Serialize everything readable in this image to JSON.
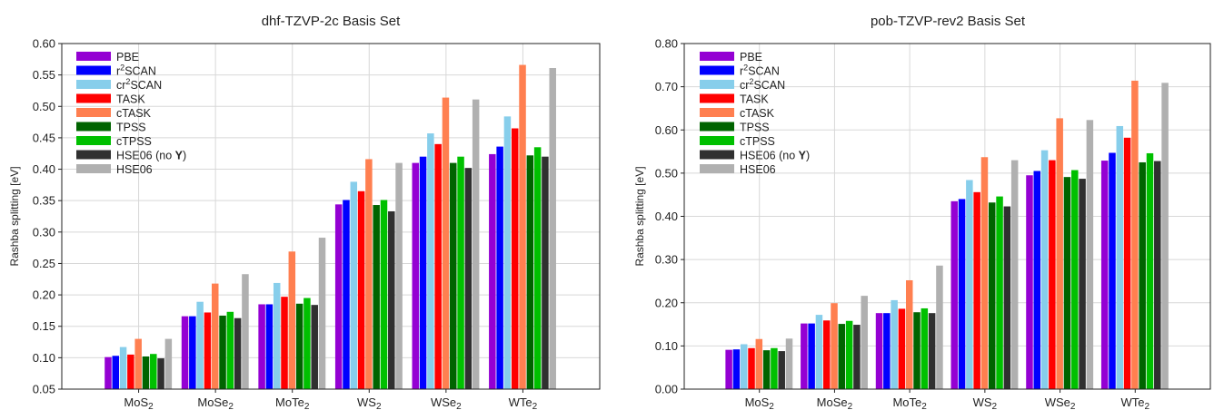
{
  "chart_data": [
    {
      "type": "bar",
      "title": "dhf-TZVP-2c Basis Set",
      "xlabel": "",
      "ylabel": "Rashba splitting [eV]",
      "ylim": [
        0.05,
        0.6
      ],
      "yticks": [
        "0.05",
        "0.10",
        "0.15",
        "0.20",
        "0.25",
        "0.30",
        "0.35",
        "0.40",
        "0.45",
        "0.50",
        "0.55",
        "0.60"
      ],
      "grid": true,
      "legend_position": "top-left",
      "categories": [
        {
          "base": "MoS",
          "sub": "2"
        },
        {
          "base": "MoSe",
          "sub": "2"
        },
        {
          "base": "MoTe",
          "sub": "2"
        },
        {
          "base": "WS",
          "sub": "2"
        },
        {
          "base": "WSe",
          "sub": "2"
        },
        {
          "base": "WTe",
          "sub": "2"
        }
      ],
      "series": [
        {
          "name": "PBE",
          "color": "#9400d3",
          "values": [
            0.101,
            0.166,
            0.185,
            0.344,
            0.41,
            0.424
          ]
        },
        {
          "name": "r²SCAN",
          "color": "#0000ff",
          "values": [
            0.103,
            0.166,
            0.185,
            0.351,
            0.42,
            0.436
          ]
        },
        {
          "name": "cr²SCAN",
          "color": "#87ceeb",
          "values": [
            0.117,
            0.189,
            0.219,
            0.38,
            0.457,
            0.484
          ]
        },
        {
          "name": "TASK",
          "color": "#ff0000",
          "values": [
            0.105,
            0.172,
            0.197,
            0.365,
            0.44,
            0.465
          ]
        },
        {
          "name": "cTASK",
          "color": "#ff7f50",
          "values": [
            0.13,
            0.218,
            0.269,
            0.416,
            0.514,
            0.566
          ]
        },
        {
          "name": "TPSS",
          "color": "#006400",
          "values": [
            0.102,
            0.167,
            0.186,
            0.343,
            0.41,
            0.422
          ]
        },
        {
          "name": "cTPSS",
          "color": "#00c000",
          "values": [
            0.106,
            0.173,
            0.195,
            0.351,
            0.42,
            0.435
          ]
        },
        {
          "name": "HSE06 (no Y)",
          "color": "#303030",
          "values": [
            0.099,
            0.163,
            0.184,
            0.333,
            0.402,
            0.42
          ]
        },
        {
          "name": "HSE06",
          "color": "#b0b0b0",
          "values": [
            0.13,
            0.233,
            0.291,
            0.41,
            0.511,
            0.561
          ]
        }
      ]
    },
    {
      "type": "bar",
      "title": "pob-TZVP-rev2 Basis Set",
      "xlabel": "",
      "ylabel": "Rashba splitting [eV]",
      "ylim": [
        0.0,
        0.8
      ],
      "yticks": [
        "0.00",
        "0.10",
        "0.20",
        "0.30",
        "0.40",
        "0.50",
        "0.60",
        "0.70",
        "0.80"
      ],
      "grid": true,
      "legend_position": "top-left",
      "categories": [
        {
          "base": "MoS",
          "sub": "2"
        },
        {
          "base": "MoSe",
          "sub": "2"
        },
        {
          "base": "MoTe",
          "sub": "2"
        },
        {
          "base": "WS",
          "sub": "2"
        },
        {
          "base": "WSe",
          "sub": "2"
        },
        {
          "base": "WTe",
          "sub": "2"
        }
      ],
      "series": [
        {
          "name": "PBE",
          "color": "#9400d3",
          "values": [
            0.091,
            0.152,
            0.176,
            0.435,
            0.495,
            0.529
          ]
        },
        {
          "name": "r²SCAN",
          "color": "#0000ff",
          "values": [
            0.092,
            0.152,
            0.176,
            0.44,
            0.505,
            0.547
          ]
        },
        {
          "name": "cr²SCAN",
          "color": "#87ceeb",
          "values": [
            0.104,
            0.172,
            0.206,
            0.484,
            0.553,
            0.609
          ]
        },
        {
          "name": "TASK",
          "color": "#ff0000",
          "values": [
            0.095,
            0.159,
            0.186,
            0.456,
            0.53,
            0.582
          ]
        },
        {
          "name": "cTASK",
          "color": "#ff7f50",
          "values": [
            0.116,
            0.199,
            0.252,
            0.537,
            0.627,
            0.714
          ]
        },
        {
          "name": "TPSS",
          "color": "#006400",
          "values": [
            0.09,
            0.151,
            0.178,
            0.432,
            0.491,
            0.525
          ]
        },
        {
          "name": "cTPSS",
          "color": "#00c000",
          "values": [
            0.095,
            0.158,
            0.187,
            0.446,
            0.507,
            0.546
          ]
        },
        {
          "name": "HSE06 (no Y)",
          "color": "#303030",
          "values": [
            0.088,
            0.149,
            0.176,
            0.423,
            0.487,
            0.528
          ]
        },
        {
          "name": "HSE06",
          "color": "#b0b0b0",
          "values": [
            0.117,
            0.216,
            0.286,
            0.53,
            0.623,
            0.709
          ]
        }
      ]
    }
  ]
}
